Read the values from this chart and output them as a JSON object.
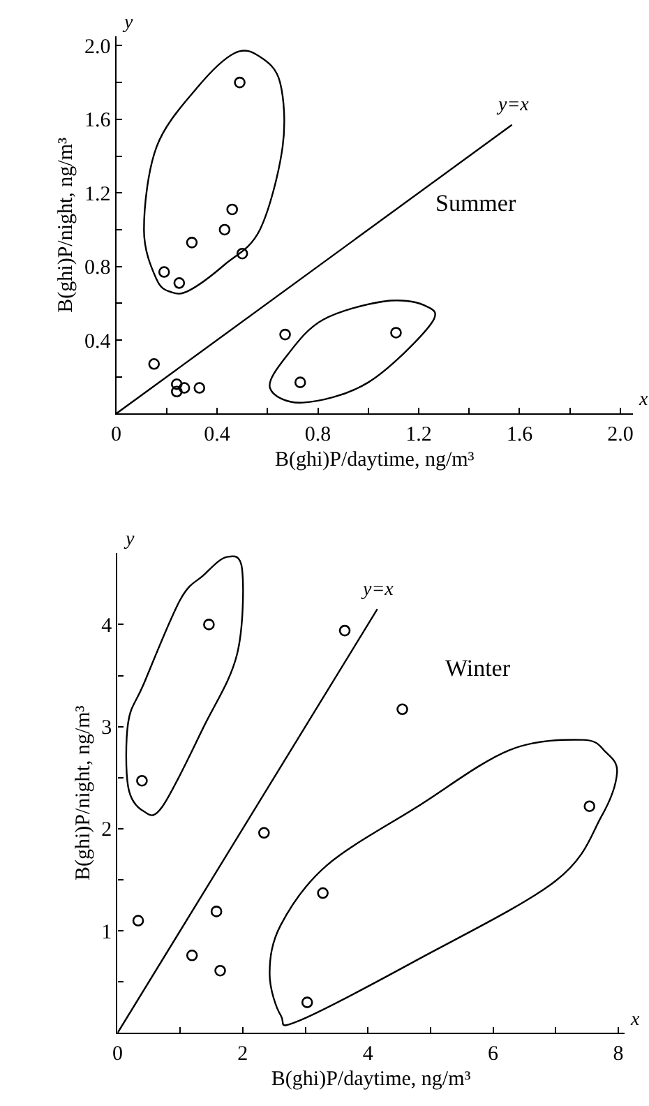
{
  "chart_data": [
    {
      "type": "scatter",
      "title": "Summer",
      "xlabel": "B(ghi)P/daytime, ng/m³",
      "ylabel": "B(ghi)P/night, ng/m³",
      "annotations": [
        "x",
        "y"
      ],
      "xlim": [
        0,
        2.05
      ],
      "ylim": [
        0,
        2.05
      ],
      "xticks": [
        0,
        {
          "value": 0.2,
          "label": null
        },
        0.4,
        {
          "value": 0.6,
          "label": null
        },
        0.8,
        {
          "value": 1.0,
          "label": null
        },
        1.2,
        {
          "value": 1.4,
          "label": null
        },
        1.6,
        {
          "value": 1.8,
          "label": null
        },
        {
          "value": 2,
          "label": "2.0"
        }
      ],
      "yticks": [
        {
          "value": 0.2,
          "label": null
        },
        0.4,
        {
          "value": 0.6,
          "label": null
        },
        0.8,
        {
          "value": 1.0,
          "label": null
        },
        1.2,
        {
          "value": 1.4,
          "label": null
        },
        1.6,
        {
          "value": 1.8,
          "label": null
        },
        {
          "value": 2,
          "label": "2.0"
        }
      ],
      "legend": false,
      "marker": "circle",
      "series": [
        {
          "type": "scatter",
          "color": "#000000",
          "x": [
            0.49,
            0.46,
            0.43,
            0.3,
            0.5,
            0.19,
            0.25,
            0.67,
            1.11,
            0.73,
            0.15,
            0.24,
            0.24,
            0.27,
            0.33
          ],
          "values": [
            1.8,
            1.11,
            1.0,
            0.93,
            0.87,
            0.77,
            0.71,
            0.43,
            0.44,
            0.17,
            0.27,
            0.16,
            0.12,
            0.14,
            0.14
          ]
        },
        {
          "type": "line",
          "name": "y=x",
          "marker": "none",
          "color": "#000000",
          "x": [
            0,
            1.57
          ],
          "values": [
            0,
            1.57
          ]
        }
      ]
    },
    {
      "type": "scatter",
      "title": "Winter",
      "xlabel": "B(ghi)P/daytime, ng/m³",
      "ylabel": "B(ghi)P/night, ng/m³",
      "annotations": [
        "x",
        "y"
      ],
      "xlim": [
        0,
        8.1
      ],
      "ylim": [
        0,
        4.7
      ],
      "xticks": [
        0,
        {
          "value": 1,
          "label": null
        },
        2,
        {
          "value": 3,
          "label": null
        },
        4,
        {
          "value": 5,
          "label": null
        },
        6,
        {
          "value": 7,
          "label": null
        },
        8
      ],
      "yticks": [
        {
          "value": 0.5,
          "label": null
        },
        1,
        {
          "value": 1.5,
          "label": null
        },
        2,
        {
          "value": 2.5,
          "label": null
        },
        3,
        {
          "value": 3.5,
          "label": null
        },
        4
      ],
      "legend": false,
      "marker": "circle",
      "series": [
        {
          "type": "scatter",
          "color": "#000000",
          "x": [
            1.46,
            0.39,
            0.33,
            1.19,
            1.58,
            1.64,
            2.34,
            3.63,
            4.55,
            3.28,
            3.03,
            7.54
          ],
          "values": [
            4.0,
            2.47,
            1.1,
            0.76,
            1.19,
            0.61,
            1.96,
            3.94,
            3.17,
            1.37,
            0.3,
            2.22
          ]
        },
        {
          "type": "line",
          "name": "y=x",
          "marker": "none",
          "color": "#000000",
          "x": [
            0,
            4.15
          ],
          "values": [
            0,
            4.15
          ]
        }
      ]
    }
  ]
}
